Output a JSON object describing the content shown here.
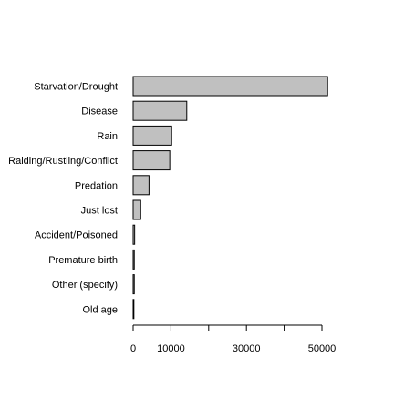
{
  "chart_data": {
    "type": "bar",
    "orientation": "horizontal",
    "categories": [
      "Starvation/Drought",
      "Disease",
      "Rain",
      "Raiding/Rustling/Conflict",
      "Predation",
      "Just lost",
      "Accident/Poisoned",
      "Premature birth",
      "Other (specify)",
      "Old age"
    ],
    "values": [
      51500,
      14200,
      10200,
      9700,
      4200,
      2000,
      400,
      300,
      300,
      200
    ],
    "title": "",
    "xlabel": "",
    "ylabel": "",
    "xlim": [
      0,
      52000
    ],
    "x_ticks": [
      0,
      10000,
      20000,
      30000,
      40000,
      50000
    ],
    "x_tick_labels": [
      "0",
      "10000",
      "",
      "30000",
      "",
      "50000"
    ],
    "bar_color": "#c0c0c0",
    "bar_edge_color": "#000000",
    "grid": false,
    "legend": "none"
  }
}
